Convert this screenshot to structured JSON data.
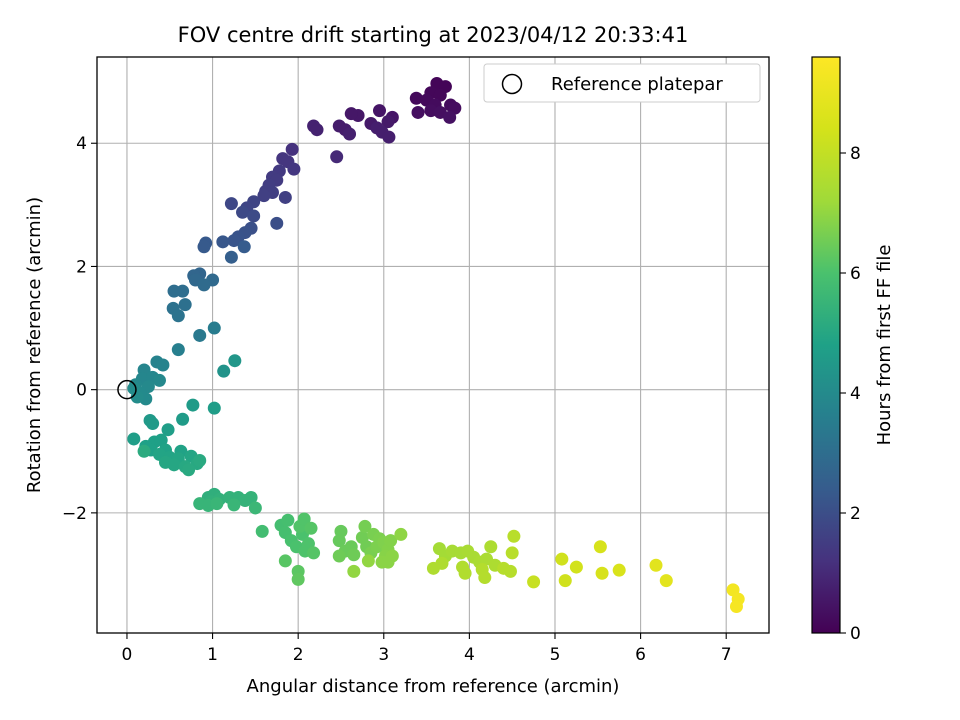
{
  "chart_data": {
    "type": "scatter",
    "title": "FOV centre drift starting at 2023/04/12 20:33:41",
    "xlabel": "Angular distance from reference (arcmin)",
    "ylabel": "Rotation from reference (arcmin)",
    "xlim": [
      -0.35,
      7.5
    ],
    "ylim": [
      -3.95,
      5.4
    ],
    "xticks": [
      "0",
      "1",
      "2",
      "3",
      "4",
      "5",
      "6",
      "7"
    ],
    "yticks": [
      "−2",
      "0",
      "2",
      "4"
    ],
    "grid": true,
    "legend": {
      "position": "top-right",
      "entries": [
        "Reference platepar"
      ]
    },
    "reference_point": {
      "x": 0,
      "y": 0
    },
    "colorbar": {
      "label": "Hours from first FF file",
      "range": [
        0,
        9.6
      ],
      "ticks": [
        "0",
        "2",
        "4",
        "6",
        "8"
      ],
      "colormap": "viridis"
    },
    "points": [
      {
        "x": 3.62,
        "y": 4.97,
        "h": 0.1
      },
      {
        "x": 3.72,
        "y": 4.92,
        "h": 0.1
      },
      {
        "x": 3.55,
        "y": 4.82,
        "h": 0.15
      },
      {
        "x": 3.66,
        "y": 4.78,
        "h": 0.15
      },
      {
        "x": 3.38,
        "y": 4.73,
        "h": 0.2
      },
      {
        "x": 3.5,
        "y": 4.7,
        "h": 0.2
      },
      {
        "x": 3.6,
        "y": 4.62,
        "h": 0.25
      },
      {
        "x": 3.78,
        "y": 4.62,
        "h": 0.25
      },
      {
        "x": 3.83,
        "y": 4.57,
        "h": 0.3
      },
      {
        "x": 3.55,
        "y": 4.53,
        "h": 0.3
      },
      {
        "x": 3.4,
        "y": 4.5,
        "h": 0.35
      },
      {
        "x": 3.66,
        "y": 4.5,
        "h": 0.35
      },
      {
        "x": 3.77,
        "y": 4.42,
        "h": 0.4
      },
      {
        "x": 3.1,
        "y": 4.42,
        "h": 0.5
      },
      {
        "x": 2.95,
        "y": 4.53,
        "h": 0.5
      },
      {
        "x": 2.7,
        "y": 4.45,
        "h": 0.55
      },
      {
        "x": 2.62,
        "y": 4.48,
        "h": 0.55
      },
      {
        "x": 3.05,
        "y": 4.35,
        "h": 0.6
      },
      {
        "x": 2.85,
        "y": 4.32,
        "h": 0.6
      },
      {
        "x": 2.48,
        "y": 4.28,
        "h": 0.65
      },
      {
        "x": 2.55,
        "y": 4.22,
        "h": 0.65
      },
      {
        "x": 2.92,
        "y": 4.25,
        "h": 0.7
      },
      {
        "x": 2.98,
        "y": 4.18,
        "h": 0.7
      },
      {
        "x": 3.06,
        "y": 4.1,
        "h": 0.7
      },
      {
        "x": 2.6,
        "y": 4.15,
        "h": 0.75
      },
      {
        "x": 2.18,
        "y": 4.28,
        "h": 0.8
      },
      {
        "x": 2.22,
        "y": 4.22,
        "h": 0.8
      },
      {
        "x": 2.45,
        "y": 3.78,
        "h": 1.0
      },
      {
        "x": 1.93,
        "y": 3.9,
        "h": 1.2
      },
      {
        "x": 1.82,
        "y": 3.75,
        "h": 1.3
      },
      {
        "x": 1.88,
        "y": 3.7,
        "h": 1.3
      },
      {
        "x": 1.95,
        "y": 3.58,
        "h": 1.35
      },
      {
        "x": 1.78,
        "y": 3.55,
        "h": 1.4
      },
      {
        "x": 1.7,
        "y": 3.45,
        "h": 1.45
      },
      {
        "x": 1.75,
        "y": 3.4,
        "h": 1.45
      },
      {
        "x": 1.66,
        "y": 3.32,
        "h": 1.5
      },
      {
        "x": 1.62,
        "y": 3.22,
        "h": 1.55
      },
      {
        "x": 1.7,
        "y": 3.2,
        "h": 1.55
      },
      {
        "x": 1.6,
        "y": 3.15,
        "h": 1.6
      },
      {
        "x": 1.85,
        "y": 3.12,
        "h": 1.6
      },
      {
        "x": 1.48,
        "y": 3.05,
        "h": 1.7
      },
      {
        "x": 1.4,
        "y": 2.95,
        "h": 1.75
      },
      {
        "x": 1.22,
        "y": 3.02,
        "h": 1.8
      },
      {
        "x": 1.35,
        "y": 2.88,
        "h": 1.85
      },
      {
        "x": 1.48,
        "y": 2.82,
        "h": 1.9
      },
      {
        "x": 1.75,
        "y": 2.7,
        "h": 2.0
      },
      {
        "x": 1.45,
        "y": 2.62,
        "h": 2.05
      },
      {
        "x": 1.38,
        "y": 2.55,
        "h": 2.1
      },
      {
        "x": 1.3,
        "y": 2.48,
        "h": 2.15
      },
      {
        "x": 1.25,
        "y": 2.42,
        "h": 2.2
      },
      {
        "x": 1.12,
        "y": 2.4,
        "h": 2.25
      },
      {
        "x": 0.92,
        "y": 2.38,
        "h": 2.3
      },
      {
        "x": 0.9,
        "y": 2.32,
        "h": 2.35
      },
      {
        "x": 1.37,
        "y": 2.32,
        "h": 2.4
      },
      {
        "x": 1.22,
        "y": 2.15,
        "h": 2.5
      },
      {
        "x": 0.85,
        "y": 1.88,
        "h": 2.7
      },
      {
        "x": 0.78,
        "y": 1.85,
        "h": 2.75
      },
      {
        "x": 0.8,
        "y": 1.78,
        "h": 2.8
      },
      {
        "x": 1.0,
        "y": 1.78,
        "h": 2.85
      },
      {
        "x": 0.9,
        "y": 1.7,
        "h": 2.9
      },
      {
        "x": 0.65,
        "y": 1.6,
        "h": 3.0
      },
      {
        "x": 0.55,
        "y": 1.6,
        "h": 3.0
      },
      {
        "x": 0.68,
        "y": 1.38,
        "h": 3.1
      },
      {
        "x": 0.54,
        "y": 1.32,
        "h": 3.15
      },
      {
        "x": 0.6,
        "y": 1.2,
        "h": 3.2
      },
      {
        "x": 0.85,
        "y": 0.88,
        "h": 3.4
      },
      {
        "x": 1.02,
        "y": 1.0,
        "h": 3.5
      },
      {
        "x": 0.6,
        "y": 0.65,
        "h": 3.6
      },
      {
        "x": 0.35,
        "y": 0.45,
        "h": 3.7
      },
      {
        "x": 0.42,
        "y": 0.4,
        "h": 3.75
      },
      {
        "x": 0.2,
        "y": 0.32,
        "h": 3.8
      },
      {
        "x": 0.18,
        "y": 0.18,
        "h": 3.85
      },
      {
        "x": 0.3,
        "y": 0.2,
        "h": 3.85
      },
      {
        "x": 0.38,
        "y": 0.15,
        "h": 3.9
      },
      {
        "x": 0.1,
        "y": 0.08,
        "h": 3.9
      },
      {
        "x": 0.25,
        "y": 0.05,
        "h": 3.95
      },
      {
        "x": 0.15,
        "y": -0.05,
        "h": 4.0
      },
      {
        "x": 0.22,
        "y": -0.15,
        "h": 4.0
      },
      {
        "x": 0.12,
        "y": -0.12,
        "h": 4.05
      },
      {
        "x": 0.08,
        "y": 0.02,
        "h": 4.05
      },
      {
        "x": 1.13,
        "y": 0.3,
        "h": 4.3
      },
      {
        "x": 1.26,
        "y": 0.47,
        "h": 4.4
      },
      {
        "x": 0.27,
        "y": -0.5,
        "h": 4.5
      },
      {
        "x": 0.3,
        "y": -0.55,
        "h": 4.55
      },
      {
        "x": 0.65,
        "y": -0.48,
        "h": 4.6
      },
      {
        "x": 0.77,
        "y": -0.25,
        "h": 4.6
      },
      {
        "x": 1.02,
        "y": -0.3,
        "h": 4.65
      },
      {
        "x": 0.48,
        "y": -0.65,
        "h": 4.7
      },
      {
        "x": 0.08,
        "y": -0.8,
        "h": 4.7
      },
      {
        "x": 0.32,
        "y": -0.85,
        "h": 4.75
      },
      {
        "x": 0.4,
        "y": -0.82,
        "h": 4.75
      },
      {
        "x": 0.22,
        "y": -0.92,
        "h": 4.8
      },
      {
        "x": 0.28,
        "y": -0.98,
        "h": 4.8
      },
      {
        "x": 0.45,
        "y": -0.98,
        "h": 4.85
      },
      {
        "x": 0.63,
        "y": -1.0,
        "h": 4.85
      },
      {
        "x": 0.38,
        "y": -1.05,
        "h": 4.9
      },
      {
        "x": 0.5,
        "y": -1.1,
        "h": 4.9
      },
      {
        "x": 0.6,
        "y": -1.12,
        "h": 4.95
      },
      {
        "x": 0.75,
        "y": -1.08,
        "h": 4.95
      },
      {
        "x": 0.45,
        "y": -1.18,
        "h": 5.0
      },
      {
        "x": 0.55,
        "y": -1.22,
        "h": 5.0
      },
      {
        "x": 0.68,
        "y": -1.25,
        "h": 5.05
      },
      {
        "x": 0.82,
        "y": -1.2,
        "h": 5.05
      },
      {
        "x": 0.72,
        "y": -1.3,
        "h": 5.1
      },
      {
        "x": 0.85,
        "y": -1.15,
        "h": 5.1
      },
      {
        "x": 0.2,
        "y": -1.0,
        "h": 5.15
      },
      {
        "x": 0.95,
        "y": -1.75,
        "h": 5.3
      },
      {
        "x": 1.02,
        "y": -1.7,
        "h": 5.3
      },
      {
        "x": 0.98,
        "y": -1.82,
        "h": 5.35
      },
      {
        "x": 1.08,
        "y": -1.78,
        "h": 5.35
      },
      {
        "x": 1.2,
        "y": -1.75,
        "h": 5.4
      },
      {
        "x": 1.3,
        "y": -1.75,
        "h": 5.4
      },
      {
        "x": 1.38,
        "y": -1.8,
        "h": 5.45
      },
      {
        "x": 1.45,
        "y": -1.75,
        "h": 5.45
      },
      {
        "x": 0.85,
        "y": -1.85,
        "h": 5.5
      },
      {
        "x": 0.95,
        "y": -1.88,
        "h": 5.5
      },
      {
        "x": 1.05,
        "y": -1.85,
        "h": 5.55
      },
      {
        "x": 1.25,
        "y": -1.87,
        "h": 5.55
      },
      {
        "x": 1.5,
        "y": -1.92,
        "h": 5.6
      },
      {
        "x": 1.58,
        "y": -2.3,
        "h": 5.8
      },
      {
        "x": 1.8,
        "y": -2.2,
        "h": 5.85
      },
      {
        "x": 1.85,
        "y": -2.32,
        "h": 5.9
      },
      {
        "x": 1.88,
        "y": -2.12,
        "h": 5.9
      },
      {
        "x": 1.92,
        "y": -2.45,
        "h": 5.95
      },
      {
        "x": 1.98,
        "y": -2.55,
        "h": 6.0
      },
      {
        "x": 2.05,
        "y": -2.35,
        "h": 6.0
      },
      {
        "x": 2.08,
        "y": -2.62,
        "h": 6.05
      },
      {
        "x": 2.12,
        "y": -2.5,
        "h": 6.05
      },
      {
        "x": 2.02,
        "y": -2.22,
        "h": 6.1
      },
      {
        "x": 2.07,
        "y": -2.1,
        "h": 6.1
      },
      {
        "x": 2.15,
        "y": -2.25,
        "h": 6.15
      },
      {
        "x": 2.18,
        "y": -2.65,
        "h": 6.15
      },
      {
        "x": 1.85,
        "y": -2.78,
        "h": 6.2
      },
      {
        "x": 2.0,
        "y": -2.95,
        "h": 6.25
      },
      {
        "x": 2.0,
        "y": -3.08,
        "h": 6.3
      },
      {
        "x": 2.5,
        "y": -2.3,
        "h": 6.4
      },
      {
        "x": 2.48,
        "y": -2.45,
        "h": 6.4
      },
      {
        "x": 2.55,
        "y": -2.62,
        "h": 6.45
      },
      {
        "x": 2.62,
        "y": -2.55,
        "h": 6.45
      },
      {
        "x": 2.65,
        "y": -2.68,
        "h": 6.5
      },
      {
        "x": 2.48,
        "y": -2.7,
        "h": 6.5
      },
      {
        "x": 2.75,
        "y": -2.4,
        "h": 6.55
      },
      {
        "x": 2.8,
        "y": -2.55,
        "h": 6.55
      },
      {
        "x": 2.78,
        "y": -2.22,
        "h": 6.6
      },
      {
        "x": 2.85,
        "y": -2.65,
        "h": 6.65
      },
      {
        "x": 2.88,
        "y": -2.35,
        "h": 6.65
      },
      {
        "x": 2.95,
        "y": -2.42,
        "h": 6.7
      },
      {
        "x": 2.92,
        "y": -2.55,
        "h": 6.7
      },
      {
        "x": 3.0,
        "y": -2.48,
        "h": 6.75
      },
      {
        "x": 3.05,
        "y": -2.6,
        "h": 6.8
      },
      {
        "x": 3.08,
        "y": -2.45,
        "h": 6.8
      },
      {
        "x": 3.02,
        "y": -2.7,
        "h": 6.85
      },
      {
        "x": 2.98,
        "y": -2.8,
        "h": 6.9
      },
      {
        "x": 3.1,
        "y": -2.7,
        "h": 6.9
      },
      {
        "x": 3.05,
        "y": -2.8,
        "h": 6.9
      },
      {
        "x": 3.2,
        "y": -2.35,
        "h": 6.95
      },
      {
        "x": 2.82,
        "y": -2.78,
        "h": 7.0
      },
      {
        "x": 2.65,
        "y": -2.95,
        "h": 7.0
      },
      {
        "x": 3.65,
        "y": -2.58,
        "h": 7.3
      },
      {
        "x": 3.72,
        "y": -2.7,
        "h": 7.3
      },
      {
        "x": 3.8,
        "y": -2.62,
        "h": 7.35
      },
      {
        "x": 3.9,
        "y": -2.65,
        "h": 7.35
      },
      {
        "x": 3.98,
        "y": -2.62,
        "h": 7.4
      },
      {
        "x": 4.05,
        "y": -2.72,
        "h": 7.4
      },
      {
        "x": 4.12,
        "y": -2.8,
        "h": 7.45
      },
      {
        "x": 4.2,
        "y": -2.75,
        "h": 7.45
      },
      {
        "x": 4.25,
        "y": -2.55,
        "h": 7.5
      },
      {
        "x": 4.3,
        "y": -2.85,
        "h": 7.5
      },
      {
        "x": 3.58,
        "y": -2.9,
        "h": 7.55
      },
      {
        "x": 3.68,
        "y": -2.82,
        "h": 7.55
      },
      {
        "x": 3.92,
        "y": -2.88,
        "h": 7.6
      },
      {
        "x": 3.95,
        "y": -2.98,
        "h": 7.6
      },
      {
        "x": 4.15,
        "y": -2.92,
        "h": 7.65
      },
      {
        "x": 4.18,
        "y": -3.05,
        "h": 7.65
      },
      {
        "x": 4.4,
        "y": -2.9,
        "h": 7.7
      },
      {
        "x": 4.48,
        "y": -2.95,
        "h": 7.7
      },
      {
        "x": 4.5,
        "y": -2.65,
        "h": 7.75
      },
      {
        "x": 4.52,
        "y": -2.38,
        "h": 7.75
      },
      {
        "x": 4.75,
        "y": -3.12,
        "h": 8.1
      },
      {
        "x": 5.08,
        "y": -2.75,
        "h": 8.3
      },
      {
        "x": 5.12,
        "y": -3.1,
        "h": 8.3
      },
      {
        "x": 5.25,
        "y": -2.88,
        "h": 8.35
      },
      {
        "x": 5.53,
        "y": -2.55,
        "h": 8.5
      },
      {
        "x": 5.55,
        "y": -2.98,
        "h": 8.5
      },
      {
        "x": 5.75,
        "y": -2.93,
        "h": 8.55
      },
      {
        "x": 6.18,
        "y": -2.85,
        "h": 8.8
      },
      {
        "x": 6.3,
        "y": -3.1,
        "h": 8.85
      },
      {
        "x": 7.08,
        "y": -3.25,
        "h": 9.3
      },
      {
        "x": 7.14,
        "y": -3.4,
        "h": 9.35
      },
      {
        "x": 7.12,
        "y": -3.52,
        "h": 9.4
      }
    ]
  }
}
